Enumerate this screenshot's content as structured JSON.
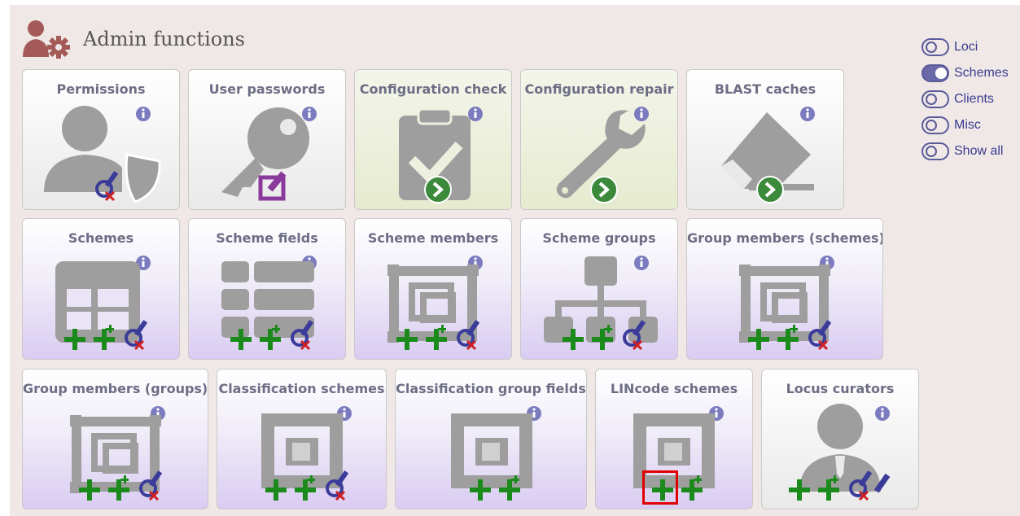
{
  "header": {
    "title": "Admin functions",
    "icon": "admin-gear-icon"
  },
  "toggles": [
    {
      "label": "Loci",
      "on": false
    },
    {
      "label": "Schemes",
      "on": true
    },
    {
      "label": "Clients",
      "on": false
    },
    {
      "label": "Misc",
      "on": false
    },
    {
      "label": "Show all",
      "on": false
    }
  ],
  "cards": {
    "permissions": "Permissions",
    "user_passwords": "User passwords",
    "configuration_check": "Configuration check",
    "configuration_repair": "Configuration repair",
    "blast_caches": "BLAST caches",
    "schemes": "Schemes",
    "scheme_fields": "Scheme fields",
    "scheme_members": "Scheme members",
    "scheme_groups": "Scheme groups",
    "group_members_schemes": "Group members (schemes)",
    "group_members_groups": "Group members (groups)",
    "classification_schemes": "Classification schemes",
    "classification_group_fields": "Classification group fields",
    "lincode_schemes": "LINcode schemes",
    "locus_curators": "Locus curators"
  },
  "info_glyph": "i",
  "colors": {
    "accent": "#7b7bbf",
    "add_green": "#1a8a1a",
    "go_green": "#3b8a3b",
    "highlight": "#e10000"
  }
}
